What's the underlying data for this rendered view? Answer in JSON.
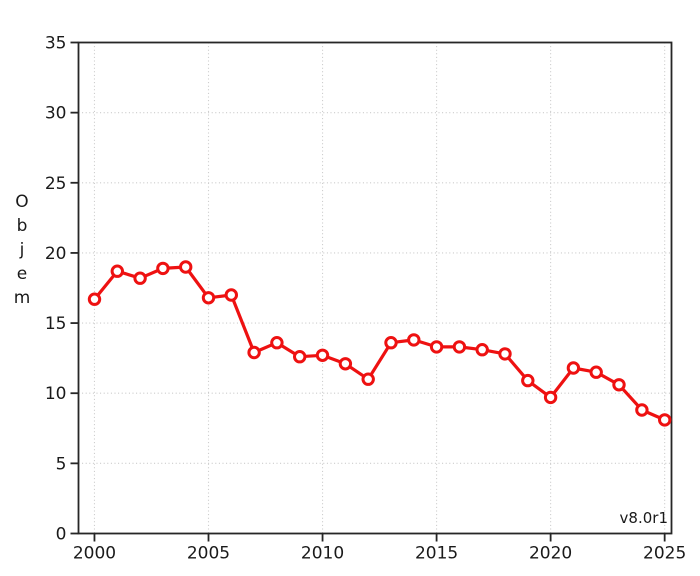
{
  "chart_data": {
    "type": "line",
    "title": "",
    "xlabel": "",
    "ylabel": "Objem",
    "annotation": "v8.0r1",
    "x": [
      2000,
      2001,
      2002,
      2003,
      2004,
      2005,
      2006,
      2007,
      2008,
      2009,
      2010,
      2011,
      2012,
      2013,
      2014,
      2015,
      2016,
      2017,
      2018,
      2019,
      2020,
      2021,
      2022,
      2023,
      2024,
      2025
    ],
    "series": [
      {
        "name": "Objem",
        "color": "#ee1111",
        "marker": "open-circle",
        "marker_fill": "#ffffff",
        "values": [
          16.7,
          18.7,
          18.2,
          18.9,
          19.0,
          16.8,
          17.0,
          12.9,
          13.6,
          12.6,
          12.7,
          12.1,
          11.0,
          13.6,
          13.8,
          13.3,
          13.3,
          13.1,
          12.8,
          10.9,
          9.7,
          11.8,
          11.5,
          10.6,
          8.8,
          8.1
        ]
      }
    ],
    "xticks": [
      2000,
      2005,
      2010,
      2015,
      2020,
      2025
    ],
    "yticks": [
      0,
      5,
      10,
      15,
      20,
      25,
      30,
      35
    ],
    "xlim": [
      1999.3,
      2025.3
    ],
    "ylim": [
      0,
      35
    ],
    "grid": true,
    "grid_style": "dotted",
    "legend_position": "none"
  },
  "colors": {
    "background": "#ffffff",
    "grid": "#c8c8c8",
    "frame": "#262626",
    "text": "#1a1a1a"
  }
}
